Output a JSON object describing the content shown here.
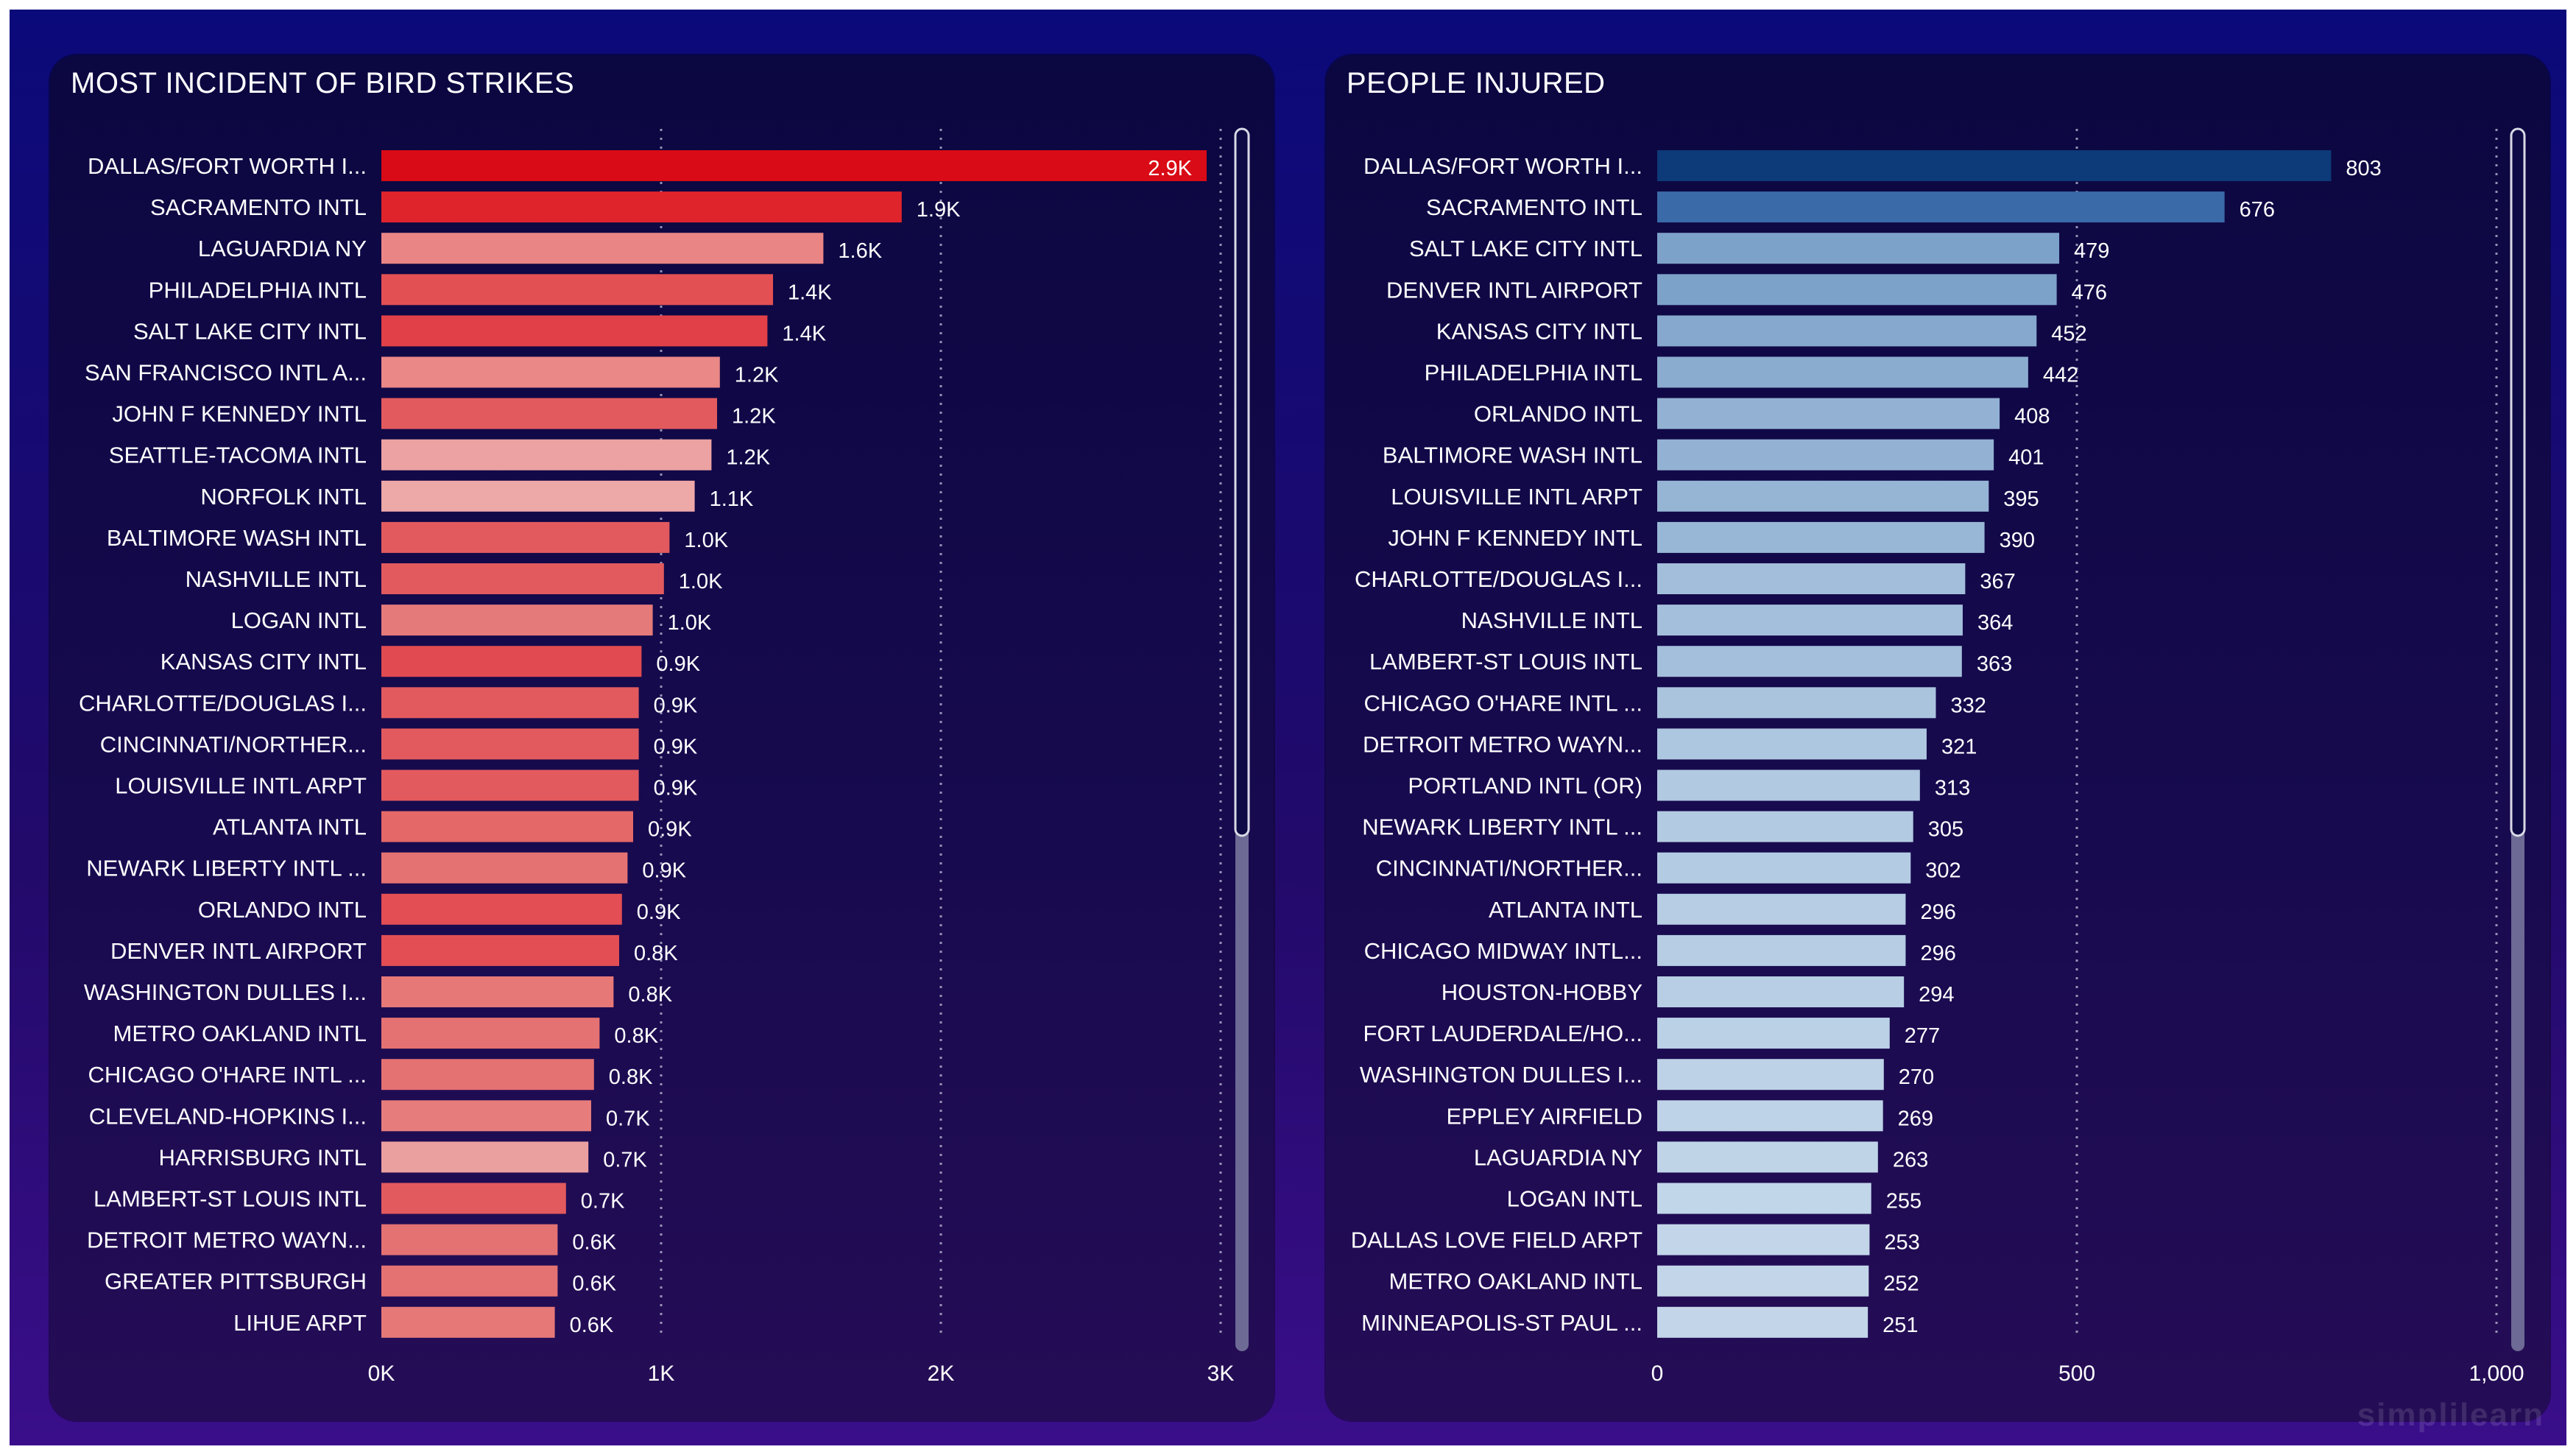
{
  "chart_data": [
    {
      "type": "bar",
      "orientation": "horizontal",
      "title": "MOST INCIDENT OF BIRD STRIKES",
      "xlim": [
        0,
        3000
      ],
      "ticks": [
        0,
        1000,
        2000,
        3000
      ],
      "tick_labels": [
        "0K",
        "1K",
        "2K",
        "3K"
      ],
      "grid": true,
      "categories": [
        "DALLAS/FORT WORTH I...",
        "SACRAMENTO INTL",
        "LAGUARDIA NY",
        "PHILADELPHIA INTL",
        "SALT LAKE CITY INTL",
        "SAN FRANCISCO INTL A...",
        "JOHN F KENNEDY INTL",
        "SEATTLE-TACOMA INTL",
        "NORFOLK INTL",
        "BALTIMORE WASH INTL",
        "NASHVILLE INTL",
        "LOGAN INTL",
        "KANSAS CITY INTL",
        "CHARLOTTE/DOUGLAS I...",
        "CINCINNATI/NORTHER...",
        "LOUISVILLE INTL ARPT",
        "ATLANTA INTL",
        "NEWARK LIBERTY INTL ...",
        "ORLANDO INTL",
        "DENVER INTL AIRPORT",
        "WASHINGTON DULLES I...",
        "METRO OAKLAND INTL",
        "CHICAGO O'HARE INTL ...",
        "CLEVELAND-HOPKINS I...",
        "HARRISBURG INTL",
        "LAMBERT-ST LOUIS INTL",
        "DETROIT METRO WAYN...",
        "GREATER PITTSBURGH",
        "LIHUE ARPT"
      ],
      "values": [
        2950,
        1860,
        1580,
        1400,
        1380,
        1210,
        1200,
        1180,
        1120,
        1030,
        1010,
        970,
        930,
        920,
        920,
        920,
        900,
        880,
        860,
        850,
        830,
        780,
        760,
        750,
        740,
        660,
        630,
        630,
        620
      ],
      "value_labels": [
        "2.9K",
        "1.9K",
        "1.6K",
        "1.4K",
        "1.4K",
        "1.2K",
        "1.2K",
        "1.2K",
        "1.1K",
        "1.0K",
        "1.0K",
        "1.0K",
        "0.9K",
        "0.9K",
        "0.9K",
        "0.9K",
        "0.9K",
        "0.9K",
        "0.9K",
        "0.8K",
        "0.8K",
        "0.8K",
        "0.8K",
        "0.7K",
        "0.7K",
        "0.7K",
        "0.6K",
        "0.6K",
        "0.6K"
      ],
      "bar_colors": [
        "#d90b16",
        "#e0242c",
        "#ea8585",
        "#e35054",
        "#e24048",
        "#ea8787",
        "#e35a5e",
        "#eca2a2",
        "#eda8a8",
        "#e35a5e",
        "#e35a5e",
        "#e57a7a",
        "#e04a50",
        "#e35a5e",
        "#e35a5e",
        "#e35a5e",
        "#e46868",
        "#e57272",
        "#e24e54",
        "#e24e54",
        "#e67878",
        "#e57272",
        "#e57272",
        "#e67c7c",
        "#eba0a0",
        "#e35a5e",
        "#e57272",
        "#e57272",
        "#e67878"
      ]
    },
    {
      "type": "bar",
      "orientation": "horizontal",
      "title": "PEOPLE INJURED",
      "xlim": [
        0,
        1000
      ],
      "ticks": [
        0,
        500,
        1000
      ],
      "tick_labels": [
        "0",
        "500",
        "1,000"
      ],
      "grid": true,
      "categories": [
        "DALLAS/FORT WORTH I...",
        "SACRAMENTO INTL",
        "SALT LAKE CITY INTL",
        "DENVER INTL AIRPORT",
        "KANSAS CITY INTL",
        "PHILADELPHIA INTL",
        "ORLANDO INTL",
        "BALTIMORE WASH INTL",
        "LOUISVILLE INTL ARPT",
        "JOHN F KENNEDY INTL",
        "CHARLOTTE/DOUGLAS I...",
        "NASHVILLE INTL",
        "LAMBERT-ST LOUIS INTL",
        "CHICAGO O'HARE INTL ...",
        "DETROIT METRO WAYN...",
        "PORTLAND INTL (OR)",
        "NEWARK LIBERTY INTL ...",
        "CINCINNATI/NORTHER...",
        "ATLANTA INTL",
        "CHICAGO MIDWAY INTL...",
        "HOUSTON-HOBBY",
        "FORT LAUDERDALE/HO...",
        "WASHINGTON DULLES I...",
        "EPPLEY AIRFIELD",
        "LAGUARDIA NY",
        "LOGAN INTL",
        "DALLAS LOVE FIELD ARPT",
        "METRO OAKLAND INTL",
        "MINNEAPOLIS-ST PAUL ..."
      ],
      "values": [
        803,
        676,
        479,
        476,
        452,
        442,
        408,
        401,
        395,
        390,
        367,
        364,
        363,
        332,
        321,
        313,
        305,
        302,
        296,
        296,
        294,
        277,
        270,
        269,
        263,
        255,
        253,
        252,
        251
      ],
      "value_labels": [
        "803",
        "676",
        "479",
        "476",
        "452",
        "442",
        "408",
        "401",
        "395",
        "390",
        "367",
        "364",
        "363",
        "332",
        "321",
        "313",
        "305",
        "302",
        "296",
        "296",
        "294",
        "277",
        "270",
        "269",
        "263",
        "255",
        "253",
        "252",
        "251"
      ],
      "bar_colors": [
        "#0d3a78",
        "#3a6aa8",
        "#7da2ca",
        "#7da2ca",
        "#86a8ce",
        "#8aaccf",
        "#93b2d3",
        "#93b2d3",
        "#96b5d5",
        "#98b7d6",
        "#a2bedb",
        "#a4bfdb",
        "#a4bfdb",
        "#aac4de",
        "#aec7e0",
        "#b1c9e1",
        "#b3cbe2",
        "#b4cce3",
        "#b6cde3",
        "#b6cde3",
        "#b7cee4",
        "#bbd1e6",
        "#bdd2e6",
        "#bed3e7",
        "#c0d4e8",
        "#c2d6e9",
        "#c3d6e9",
        "#c3d6e9",
        "#c3d6e9"
      ]
    }
  ],
  "watermark": "simplilearn"
}
